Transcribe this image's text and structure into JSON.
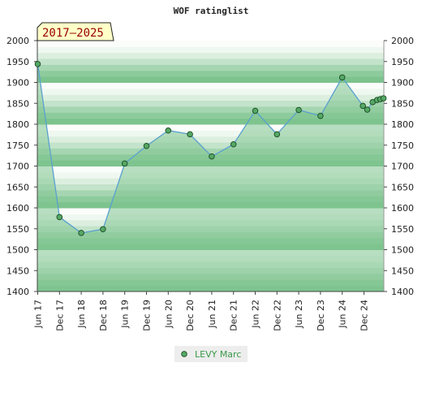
{
  "chart_data": {
    "type": "line",
    "title": "WOF ratinglist",
    "badge": "2017–2025",
    "ylim": [
      1400,
      2000
    ],
    "yticks": [
      1400,
      1450,
      1500,
      1550,
      1600,
      1650,
      1700,
      1750,
      1800,
      1850,
      1900,
      1950,
      2000
    ],
    "categories": [
      "Jun 17",
      "Dec 17",
      "Jun 18",
      "Dec 18",
      "Jun 19",
      "Dec 19",
      "Jun 20",
      "Dec 20",
      "Jun 21",
      "Dec 21",
      "Jun 22",
      "Dec 22",
      "Jun 23",
      "Dec 23",
      "Jun 24",
      "Dec 24"
    ],
    "x": [
      0,
      1,
      2,
      3,
      4,
      5,
      6,
      7,
      8,
      9,
      10,
      11,
      12,
      13,
      14,
      14.95,
      15.15,
      15.4,
      15.6,
      15.75,
      15.9
    ],
    "series": [
      {
        "name": "LEVY Marc",
        "values": [
          1944,
          1578,
          1540,
          1549,
          1706,
          1748,
          1785,
          1776,
          1723,
          1752,
          1832,
          1776,
          1834,
          1820,
          1912,
          1844,
          1835,
          1853,
          1858,
          1860,
          1862
        ]
      }
    ],
    "legend_position": "bottom-center",
    "colors": {
      "line": "#5aa0d0",
      "fill": "#7fc48f",
      "marker": "#55a865",
      "marker_edge": "#1a4a22",
      "band_dark": "#8ccb9a",
      "band_light": "#e8f5ea",
      "badge_bg": "#ffffc8",
      "legend_text": "#3a9a4a"
    }
  }
}
